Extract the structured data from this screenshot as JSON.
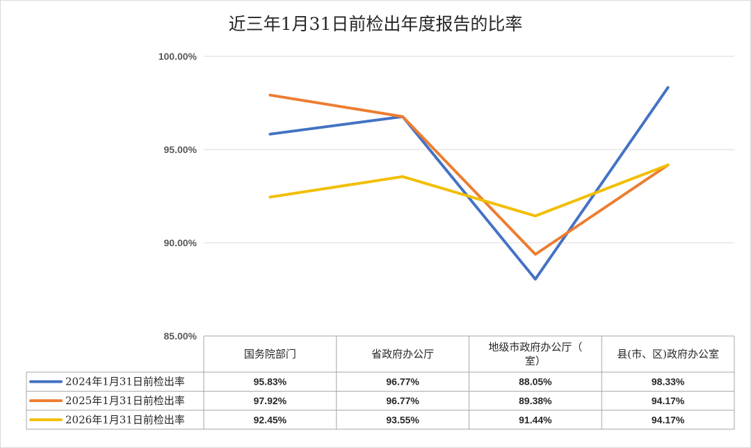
{
  "chart_data": {
    "type": "line",
    "title": "近三年1月31日前检出年度报告的比率",
    "categories": [
      "国务院部门",
      "省政府办公厅",
      "地级市政府办公厅（室）",
      "县(市、区)政府办公室"
    ],
    "category_lines": [
      [
        "国务院部门"
      ],
      [
        "省政府办公厅"
      ],
      [
        "地级市政府办公厅（",
        "室）"
      ],
      [
        "县(市、区)政府办公室"
      ]
    ],
    "series": [
      {
        "name": "2024年1月31日前检出率",
        "color": "#4472C4",
        "values": [
          95.83,
          96.77,
          88.05,
          98.33
        ],
        "labels": [
          "95.83%",
          "96.77%",
          "88.05%",
          "98.33%"
        ]
      },
      {
        "name": "2025年1月31日前检出率",
        "color": "#ED7D31",
        "values": [
          97.92,
          96.77,
          89.38,
          94.17
        ],
        "labels": [
          "97.92%",
          "96.77%",
          "89.38%",
          "94.17%"
        ]
      },
      {
        "name": "2026年1月31日前检出率",
        "color": "#F2BE00",
        "values": [
          92.45,
          93.55,
          91.44,
          94.17
        ],
        "labels": [
          "92.45%",
          "93.55%",
          "91.44%",
          "94.17%"
        ]
      }
    ],
    "yticks": [
      85,
      90,
      95,
      100
    ],
    "ytick_labels": [
      "85.00%",
      "90.00%",
      "95.00%",
      "100.00%"
    ],
    "ylim": [
      85,
      100
    ],
    "grid": true,
    "legend": "data-table-left"
  }
}
